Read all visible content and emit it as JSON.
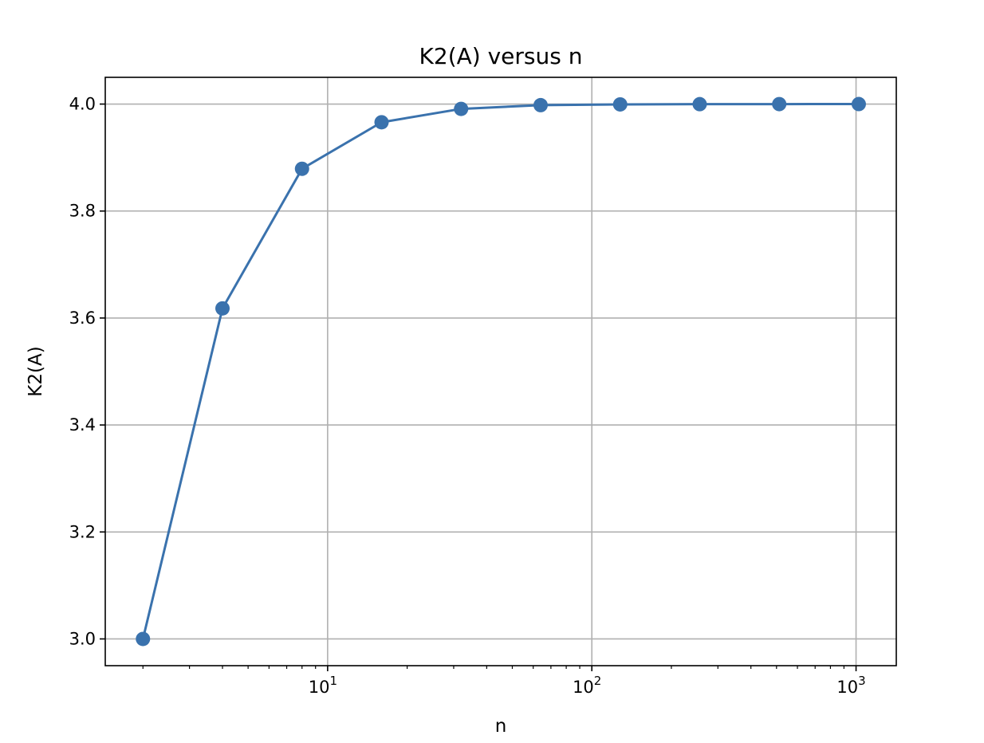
{
  "chart_data": {
    "type": "line",
    "title": "K2(A) versus n",
    "xlabel": "n",
    "ylabel": "K2(A)",
    "x_scale": "log",
    "xlim": [
      1.44,
      1420
    ],
    "ylim": [
      2.95,
      4.05
    ],
    "grid": true,
    "marker": "circle",
    "color": "#3a72ad",
    "x_ticks": [
      {
        "value": 10,
        "base": "10",
        "exp": "1"
      },
      {
        "value": 100,
        "base": "10",
        "exp": "2"
      },
      {
        "value": 1000,
        "base": "10",
        "exp": "3"
      }
    ],
    "y_ticks": [
      {
        "value": 3.0,
        "label": "3.0"
      },
      {
        "value": 3.2,
        "label": "3.2"
      },
      {
        "value": 3.4,
        "label": "3.4"
      },
      {
        "value": 3.6,
        "label": "3.6"
      },
      {
        "value": 3.8,
        "label": "3.8"
      },
      {
        "value": 4.0,
        "label": "4.0"
      }
    ],
    "series": [
      {
        "x": [
          2,
          4,
          8,
          16,
          32,
          64,
          128,
          256,
          512,
          1024
        ],
        "y": [
          3.0,
          3.618,
          3.879,
          3.966,
          3.991,
          3.998,
          3.9994,
          3.9998,
          3.99996,
          3.99999
        ]
      }
    ]
  }
}
